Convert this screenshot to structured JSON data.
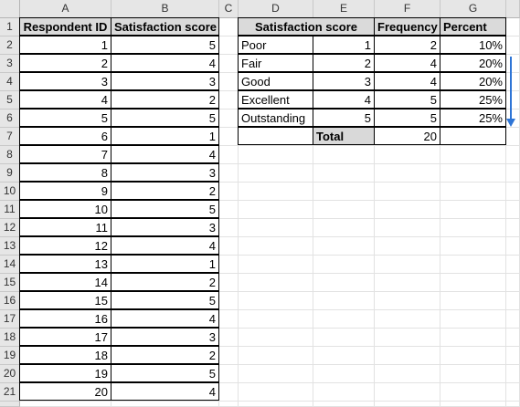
{
  "columns": [
    "A",
    "B",
    "C",
    "D",
    "E",
    "F",
    "G"
  ],
  "rows": [
    "1",
    "2",
    "3",
    "4",
    "5",
    "6",
    "7",
    "8",
    "9",
    "10",
    "11",
    "12",
    "13",
    "14",
    "15",
    "16",
    "17",
    "18",
    "19",
    "20",
    "21"
  ],
  "left_table": {
    "headers": [
      "Respondent ID",
      "Satisfaction score"
    ],
    "data": [
      [
        "1",
        "5"
      ],
      [
        "2",
        "4"
      ],
      [
        "3",
        "3"
      ],
      [
        "4",
        "2"
      ],
      [
        "5",
        "5"
      ],
      [
        "6",
        "1"
      ],
      [
        "7",
        "4"
      ],
      [
        "8",
        "3"
      ],
      [
        "9",
        "2"
      ],
      [
        "10",
        "5"
      ],
      [
        "11",
        "3"
      ],
      [
        "12",
        "4"
      ],
      [
        "13",
        "1"
      ],
      [
        "14",
        "2"
      ],
      [
        "15",
        "5"
      ],
      [
        "16",
        "4"
      ],
      [
        "17",
        "3"
      ],
      [
        "18",
        "2"
      ],
      [
        "19",
        "5"
      ],
      [
        "20",
        "4"
      ]
    ]
  },
  "right_table": {
    "headers": [
      "Satisfaction score",
      "Frequency",
      "Percent"
    ],
    "data": [
      [
        "Poor",
        "1",
        "2",
        "10%"
      ],
      [
        "Fair",
        "2",
        "4",
        "20%"
      ],
      [
        "Good",
        "3",
        "4",
        "20%"
      ],
      [
        "Excellent",
        "4",
        "5",
        "25%"
      ],
      [
        "Outstanding",
        "5",
        "5",
        "25%"
      ]
    ],
    "total_label": "Total",
    "total_value": "20"
  },
  "colors": {
    "arrow": "#2e75d6",
    "total_fill": "#d9d9d9",
    "header_fill": "#dadada"
  },
  "arrow_icon": "arrow-down-icon"
}
